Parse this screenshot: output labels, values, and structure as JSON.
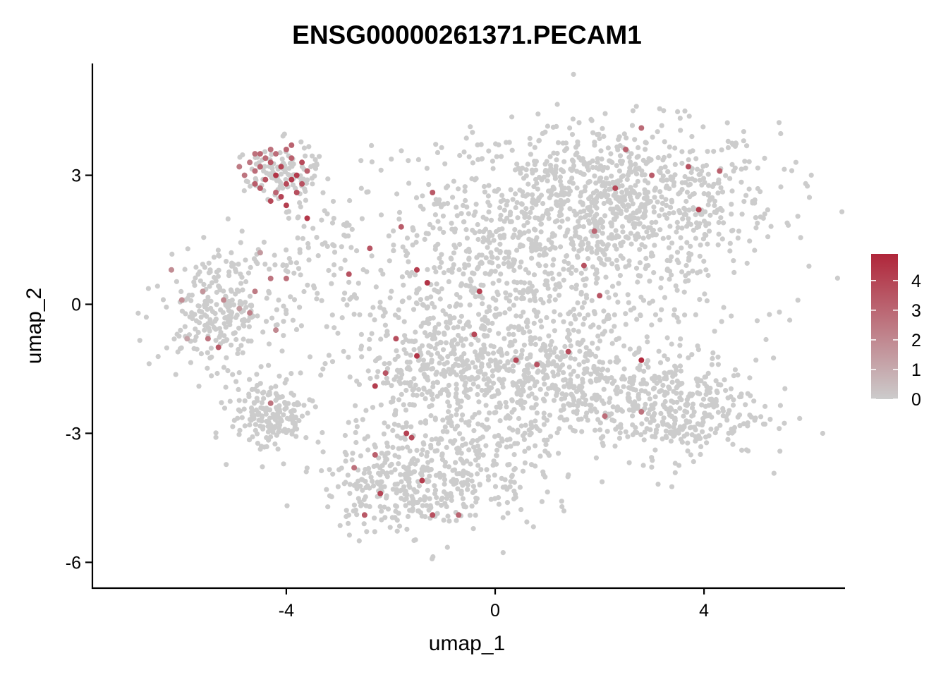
{
  "chart_data": {
    "type": "scatter",
    "title": "ENSG00000261371.PECAM1",
    "xlabel": "umap_1",
    "ylabel": "umap_2",
    "xlim": [
      -7.7,
      6.7
    ],
    "ylim": [
      -6.6,
      5.6
    ],
    "xticks": [
      -4,
      0,
      4
    ],
    "xtick_labels": [
      "-4",
      "0",
      "4"
    ],
    "yticks": [
      3,
      0,
      -3,
      -6
    ],
    "ytick_labels": [
      "3",
      "0",
      "-3",
      "-6"
    ],
    "grid": false,
    "legend": {
      "placement": "right",
      "type": "colorbar",
      "range": [
        0,
        4.9
      ],
      "ticks": [
        4,
        3,
        2,
        1,
        0
      ],
      "tick_labels": [
        "4",
        "3",
        "2",
        "1",
        "0"
      ],
      "low_color": "#cccccc",
      "high_color": "#b0263a"
    },
    "clusters": [
      {
        "cx": 2.2,
        "cy": 2.4,
        "sx": 1.6,
        "sy": 0.9,
        "n": 900
      },
      {
        "cx": 0.3,
        "cy": 0.2,
        "sx": 1.8,
        "sy": 1.4,
        "n": 800
      },
      {
        "cx": -0.8,
        "cy": -1.6,
        "sx": 1.0,
        "sy": 0.7,
        "n": 350
      },
      {
        "cx": 3.3,
        "cy": -2.4,
        "sx": 0.9,
        "sy": 0.6,
        "n": 400
      },
      {
        "cx": -1.7,
        "cy": -4.2,
        "sx": 0.8,
        "sy": 0.55,
        "n": 300
      },
      {
        "cx": -0.2,
        "cy": -3.6,
        "sx": 1.0,
        "sy": 0.8,
        "n": 200
      },
      {
        "cx": -5.3,
        "cy": -0.1,
        "sx": 0.55,
        "sy": 0.65,
        "n": 250
      },
      {
        "cx": -4.3,
        "cy": -2.6,
        "sx": 0.38,
        "sy": 0.42,
        "n": 180
      },
      {
        "cx": -4.1,
        "cy": 3.0,
        "sx": 0.35,
        "sy": 0.35,
        "n": 120
      },
      {
        "cx": -3.4,
        "cy": 1.2,
        "sx": 0.5,
        "sy": 0.6,
        "n": 60
      },
      {
        "cx": 1.5,
        "cy": -1.8,
        "sx": 0.8,
        "sy": 0.5,
        "n": 200
      }
    ],
    "high_expression_points": [
      {
        "x": -4.5,
        "y": 3.5,
        "v": 3.0
      },
      {
        "x": -4.3,
        "y": 3.3,
        "v": 3.5
      },
      {
        "x": -4.1,
        "y": 3.2,
        "v": 4.0
      },
      {
        "x": -3.9,
        "y": 3.4,
        "v": 3.2
      },
      {
        "x": -4.6,
        "y": 3.1,
        "v": 2.8
      },
      {
        "x": -4.4,
        "y": 2.9,
        "v": 3.6
      },
      {
        "x": -4.0,
        "y": 2.8,
        "v": 3.9
      },
      {
        "x": -4.2,
        "y": 2.6,
        "v": 3.0
      },
      {
        "x": -4.7,
        "y": 3.3,
        "v": 2.5
      },
      {
        "x": -3.8,
        "y": 3.0,
        "v": 4.3
      },
      {
        "x": -4.5,
        "y": 2.7,
        "v": 3.4
      },
      {
        "x": -4.3,
        "y": 3.6,
        "v": 2.7
      },
      {
        "x": -3.9,
        "y": 3.7,
        "v": 3.1
      },
      {
        "x": -4.8,
        "y": 3.0,
        "v": 2.6
      },
      {
        "x": -4.0,
        "y": 2.3,
        "v": 4.2
      },
      {
        "x": -3.7,
        "y": 3.3,
        "v": 3.8
      },
      {
        "x": -4.2,
        "y": 3.0,
        "v": 4.5
      },
      {
        "x": -4.6,
        "y": 2.8,
        "v": 3.3
      },
      {
        "x": -4.4,
        "y": 3.4,
        "v": 2.9
      },
      {
        "x": -3.8,
        "y": 2.6,
        "v": 3.7
      },
      {
        "x": -4.1,
        "y": 2.5,
        "v": 4.0
      },
      {
        "x": -4.9,
        "y": 3.2,
        "v": 2.4
      },
      {
        "x": -3.6,
        "y": 3.1,
        "v": 3.2
      },
      {
        "x": -4.3,
        "y": 2.4,
        "v": 3.9
      },
      {
        "x": -3.9,
        "y": 2.9,
        "v": 4.4
      },
      {
        "x": -4.5,
        "y": 3.2,
        "v": 3.1
      },
      {
        "x": -4.2,
        "y": 3.5,
        "v": 2.8
      },
      {
        "x": -4.0,
        "y": 3.6,
        "v": 3.0
      },
      {
        "x": -3.7,
        "y": 2.8,
        "v": 3.6
      },
      {
        "x": -4.6,
        "y": 3.5,
        "v": 2.7
      },
      {
        "x": -3.6,
        "y": 2.0,
        "v": 4.4
      },
      {
        "x": -5.6,
        "y": 0.3,
        "v": 1.6
      },
      {
        "x": -5.2,
        "y": 0.1,
        "v": 2.0
      },
      {
        "x": -4.9,
        "y": -0.1,
        "v": 1.4
      },
      {
        "x": -4.6,
        "y": 0.3,
        "v": 2.4
      },
      {
        "x": -4.3,
        "y": 0.6,
        "v": 2.6
      },
      {
        "x": -5.9,
        "y": -0.8,
        "v": 1.2
      },
      {
        "x": -6.0,
        "y": 0.1,
        "v": 1.8
      },
      {
        "x": -4.7,
        "y": -0.2,
        "v": 2.2
      },
      {
        "x": -5.3,
        "y": -1.0,
        "v": 3.4
      },
      {
        "x": -4.2,
        "y": -0.6,
        "v": 2.0
      },
      {
        "x": -4.5,
        "y": 1.2,
        "v": 1.5
      },
      {
        "x": -6.2,
        "y": 0.8,
        "v": 1.9
      },
      {
        "x": -4.0,
        "y": 0.6,
        "v": 2.7
      },
      {
        "x": -5.5,
        "y": -0.8,
        "v": 2.5
      },
      {
        "x": -4.3,
        "y": -2.3,
        "v": 2.6
      },
      {
        "x": -1.5,
        "y": 0.8,
        "v": 4.2
      },
      {
        "x": -1.3,
        "y": 0.5,
        "v": 4.5
      },
      {
        "x": -2.8,
        "y": 0.7,
        "v": 3.6
      },
      {
        "x": -1.5,
        "y": -1.2,
        "v": 4.5
      },
      {
        "x": -1.9,
        "y": -0.8,
        "v": 3.7
      },
      {
        "x": -2.3,
        "y": -1.9,
        "v": 4.2
      },
      {
        "x": -2.1,
        "y": -1.6,
        "v": 3.5
      },
      {
        "x": 0.4,
        "y": -1.3,
        "v": 4.0
      },
      {
        "x": 0.8,
        "y": -1.4,
        "v": 3.6
      },
      {
        "x": 1.4,
        "y": -1.1,
        "v": 3.8
      },
      {
        "x": 2.8,
        "y": -1.3,
        "v": 4.8
      },
      {
        "x": 2.0,
        "y": 0.2,
        "v": 3.5
      },
      {
        "x": -0.4,
        "y": -0.7,
        "v": 3.9
      },
      {
        "x": -1.8,
        "y": 1.8,
        "v": 3.3
      },
      {
        "x": -2.4,
        "y": 1.3,
        "v": 3.5
      },
      {
        "x": -1.2,
        "y": 2.6,
        "v": 3.4
      },
      {
        "x": -0.3,
        "y": 0.3,
        "v": 4.1
      },
      {
        "x": 1.7,
        "y": 0.9,
        "v": 3.6
      },
      {
        "x": 2.3,
        "y": 2.7,
        "v": 3.9
      },
      {
        "x": 2.5,
        "y": 3.6,
        "v": 3.1
      },
      {
        "x": 3.0,
        "y": 3.0,
        "v": 3.3
      },
      {
        "x": 3.9,
        "y": 2.2,
        "v": 4.2
      },
      {
        "x": 3.7,
        "y": 3.2,
        "v": 3.6
      },
      {
        "x": 4.3,
        "y": 3.1,
        "v": 3.2
      },
      {
        "x": 2.8,
        "y": 4.1,
        "v": 2.9
      },
      {
        "x": 1.9,
        "y": 1.7,
        "v": 3.0
      },
      {
        "x": 2.8,
        "y": -2.5,
        "v": 2.6
      },
      {
        "x": 2.1,
        "y": -2.6,
        "v": 2.8
      },
      {
        "x": -2.5,
        "y": -4.9,
        "v": 3.4
      },
      {
        "x": -2.2,
        "y": -4.4,
        "v": 4.0
      },
      {
        "x": -1.4,
        "y": -4.1,
        "v": 4.2
      },
      {
        "x": -1.2,
        "y": -4.9,
        "v": 3.7
      },
      {
        "x": -0.7,
        "y": -4.9,
        "v": 3.1
      },
      {
        "x": -1.7,
        "y": -3.0,
        "v": 4.1
      },
      {
        "x": -1.6,
        "y": -3.1,
        "v": 3.8
      },
      {
        "x": -2.3,
        "y": -3.5,
        "v": 3.2
      },
      {
        "x": -2.7,
        "y": -3.8,
        "v": 2.7
      }
    ]
  }
}
